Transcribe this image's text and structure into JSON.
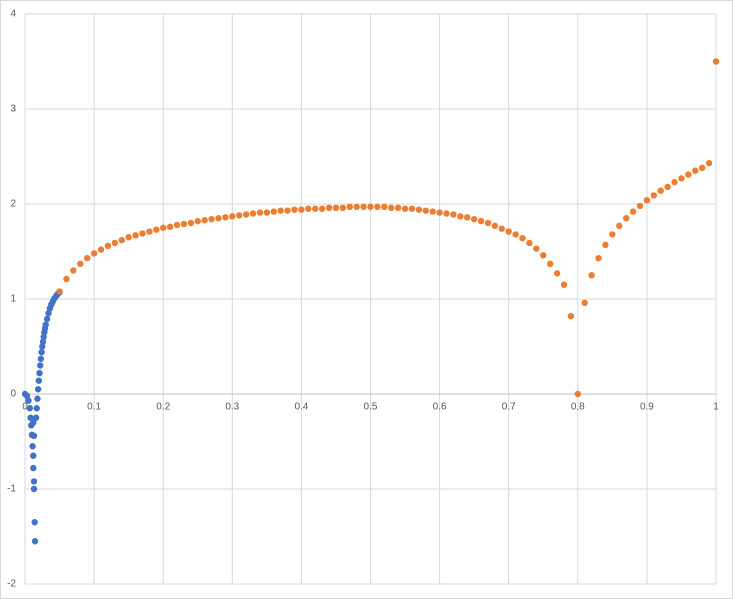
{
  "chart_data": {
    "type": "scatter",
    "xlim": [
      0,
      1
    ],
    "ylim": [
      -2,
      4
    ],
    "xticks": [
      0,
      0.1,
      0.2,
      0.3,
      0.4,
      0.5,
      0.6,
      0.7,
      0.8,
      0.9,
      1
    ],
    "yticks": [
      -2,
      -1,
      0,
      1,
      2,
      3,
      4
    ],
    "grid": true,
    "series": [
      {
        "color": "#4472c4",
        "x": [
          0,
          0.003,
          0.005,
          0.007,
          0.008,
          0.009,
          0.01,
          0.011,
          0.012,
          0.012,
          0.013,
          0.013,
          0.014,
          0.0145,
          0.013,
          0.012,
          0.016,
          0.017,
          0.018,
          0.019,
          0.02,
          0.021,
          0.022,
          0.023,
          0.024,
          0.025,
          0.026,
          0.027,
          0.028,
          0.029,
          0.03,
          0.032,
          0.034,
          0.036,
          0.038,
          0.04,
          0.042,
          0.044,
          0.046,
          0.048,
          0.05
        ],
        "values": [
          0,
          -0.02,
          -0.07,
          -0.15,
          -0.25,
          -0.33,
          -0.43,
          -0.55,
          -0.65,
          -0.78,
          -0.92,
          -1.0,
          -1.35,
          -1.55,
          -0.44,
          -0.3,
          -0.25,
          -0.15,
          -0.05,
          0.05,
          0.14,
          0.22,
          0.3,
          0.37,
          0.44,
          0.5,
          0.55,
          0.6,
          0.65,
          0.69,
          0.73,
          0.79,
          0.85,
          0.9,
          0.94,
          0.97,
          1.0,
          1.02,
          1.04,
          1.06,
          1.07
        ]
      },
      {
        "color": "#ed7d31",
        "x": [
          0.05,
          0.06,
          0.07,
          0.08,
          0.09,
          0.1,
          0.11,
          0.12,
          0.13,
          0.14,
          0.15,
          0.16,
          0.17,
          0.18,
          0.19,
          0.2,
          0.21,
          0.22,
          0.23,
          0.24,
          0.25,
          0.26,
          0.27,
          0.28,
          0.29,
          0.3,
          0.31,
          0.32,
          0.33,
          0.34,
          0.35,
          0.36,
          0.37,
          0.38,
          0.39,
          0.4,
          0.41,
          0.42,
          0.43,
          0.44,
          0.45,
          0.46,
          0.47,
          0.48,
          0.49,
          0.5,
          0.51,
          0.52,
          0.53,
          0.54,
          0.55,
          0.56,
          0.57,
          0.58,
          0.59,
          0.6,
          0.61,
          0.62,
          0.63,
          0.64,
          0.65,
          0.66,
          0.67,
          0.68,
          0.69,
          0.7,
          0.71,
          0.72,
          0.73,
          0.74,
          0.75,
          0.76,
          0.77,
          0.78,
          0.79,
          0.8,
          0.81,
          0.82,
          0.83,
          0.84,
          0.85,
          0.86,
          0.87,
          0.88,
          0.89,
          0.9,
          0.91,
          0.92,
          0.93,
          0.94,
          0.95,
          0.96,
          0.97,
          0.98,
          0.99,
          1.0
        ],
        "values": [
          1.08,
          1.21,
          1.3,
          1.37,
          1.43,
          1.48,
          1.52,
          1.56,
          1.59,
          1.62,
          1.65,
          1.67,
          1.69,
          1.71,
          1.73,
          1.75,
          1.76,
          1.78,
          1.79,
          1.8,
          1.82,
          1.83,
          1.84,
          1.85,
          1.86,
          1.87,
          1.88,
          1.89,
          1.9,
          1.91,
          1.91,
          1.92,
          1.93,
          1.93,
          1.94,
          1.94,
          1.95,
          1.95,
          1.95,
          1.96,
          1.96,
          1.96,
          1.97,
          1.97,
          1.97,
          1.97,
          1.97,
          1.97,
          1.96,
          1.96,
          1.95,
          1.95,
          1.94,
          1.93,
          1.92,
          1.91,
          1.9,
          1.89,
          1.87,
          1.86,
          1.84,
          1.82,
          1.8,
          1.77,
          1.74,
          1.71,
          1.68,
          1.64,
          1.59,
          1.53,
          1.46,
          1.37,
          1.27,
          1.15,
          0.82,
          0,
          0.96,
          1.25,
          1.43,
          1.57,
          1.68,
          1.77,
          1.85,
          1.92,
          1.98,
          2.04,
          2.09,
          2.14,
          2.18,
          2.23,
          2.27,
          2.31,
          2.35,
          2.38,
          2.43,
          3.5
        ]
      }
    ]
  }
}
